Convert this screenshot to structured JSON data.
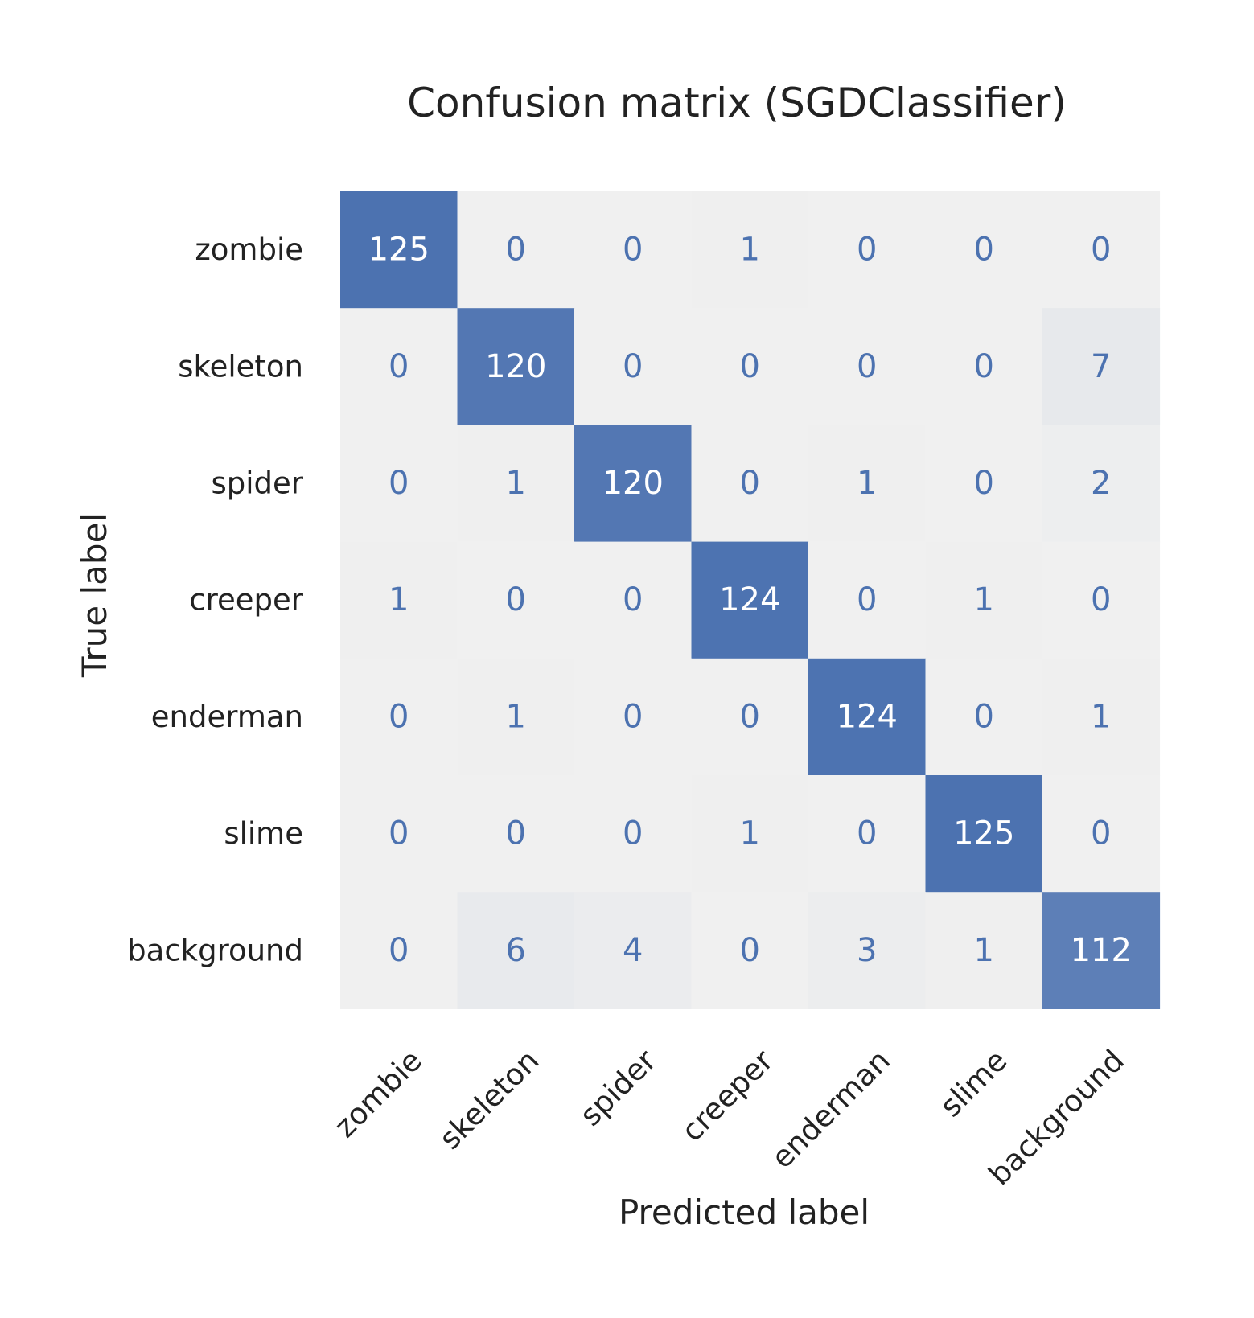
{
  "chart_data": {
    "type": "heatmap",
    "title": "Confusion matrix (SGDClassifier)",
    "xlabel": "Predicted label",
    "ylabel": "True label",
    "row_labels": [
      "zombie",
      "skeleton",
      "spider",
      "creeper",
      "enderman",
      "slime",
      "background"
    ],
    "col_labels": [
      "zombie",
      "skeleton",
      "spider",
      "creeper",
      "enderman",
      "slime",
      "background"
    ],
    "matrix": [
      [
        125,
        0,
        0,
        1,
        0,
        0,
        0
      ],
      [
        0,
        120,
        0,
        0,
        0,
        0,
        7
      ],
      [
        0,
        1,
        120,
        0,
        1,
        0,
        2
      ],
      [
        1,
        0,
        0,
        124,
        0,
        1,
        0
      ],
      [
        0,
        1,
        0,
        0,
        124,
        0,
        1
      ],
      [
        0,
        0,
        0,
        1,
        0,
        125,
        0
      ],
      [
        0,
        6,
        4,
        0,
        3,
        1,
        112
      ]
    ],
    "value_range": [
      0,
      125
    ],
    "colormap": {
      "low": "#f0f0f0",
      "high": "#4c72b0"
    },
    "value_text_colors": {
      "on_dark": "#ffffff",
      "on_light": "#4c72b0"
    }
  }
}
